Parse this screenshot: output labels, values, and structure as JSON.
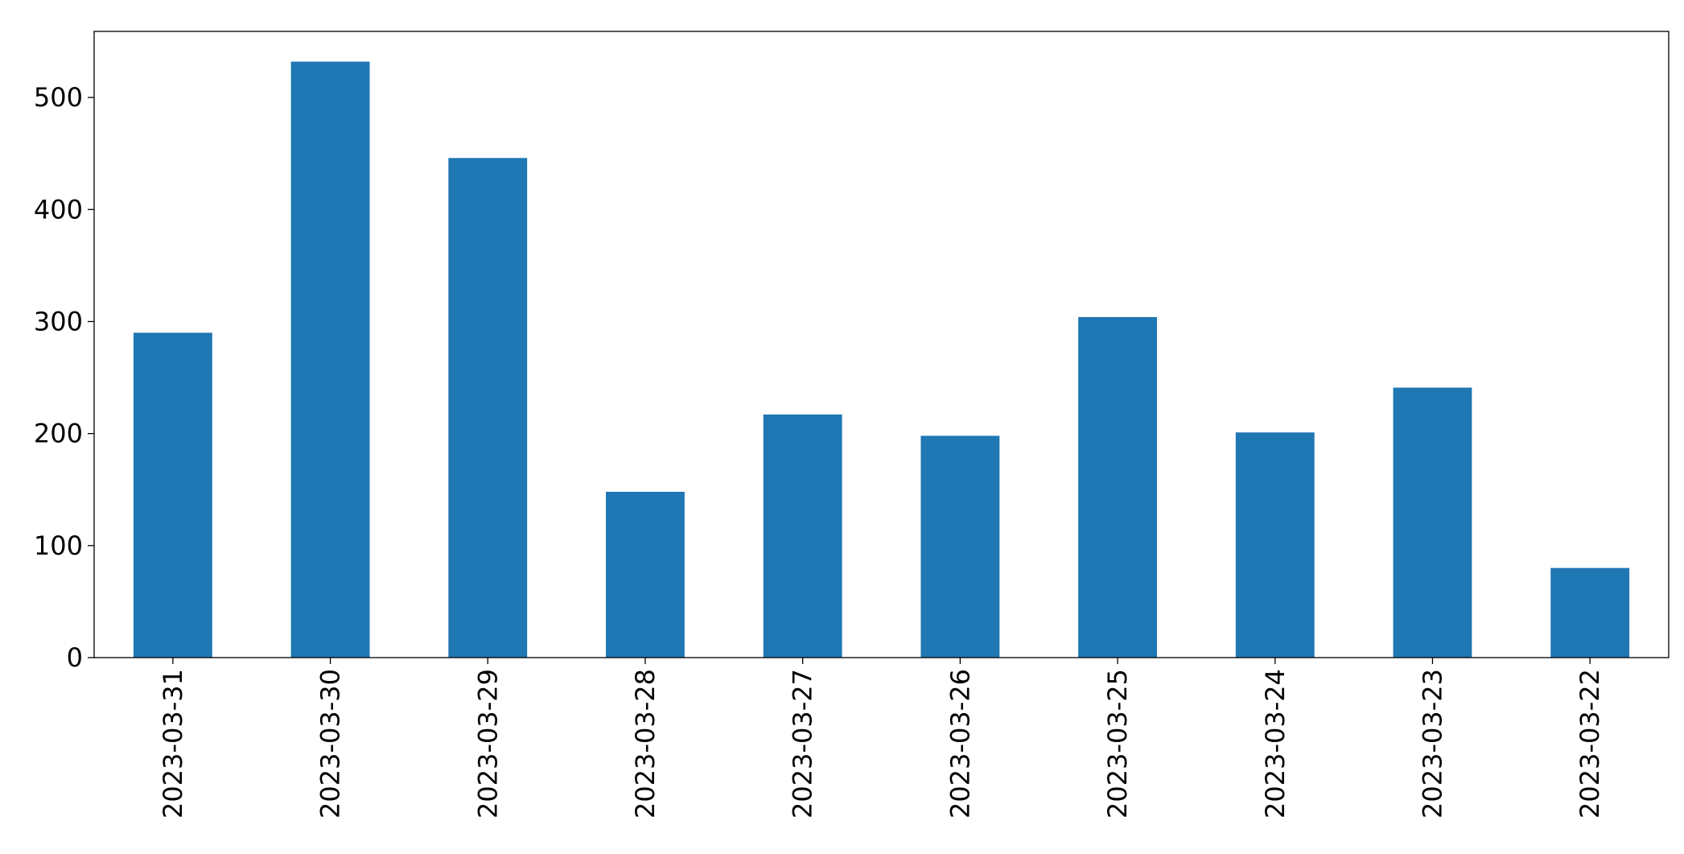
{
  "chart_data": {
    "type": "bar",
    "categories": [
      "2023-03-31",
      "2023-03-30",
      "2023-03-29",
      "2023-03-28",
      "2023-03-27",
      "2023-03-26",
      "2023-03-25",
      "2023-03-24",
      "2023-03-23",
      "2023-03-22"
    ],
    "values": [
      290,
      532,
      446,
      148,
      217,
      198,
      304,
      201,
      241,
      80
    ],
    "color": "#1f77b4",
    "ylim": [
      0,
      559
    ],
    "yticks": [
      0,
      100,
      200,
      300,
      400,
      500
    ],
    "grid": false
  }
}
